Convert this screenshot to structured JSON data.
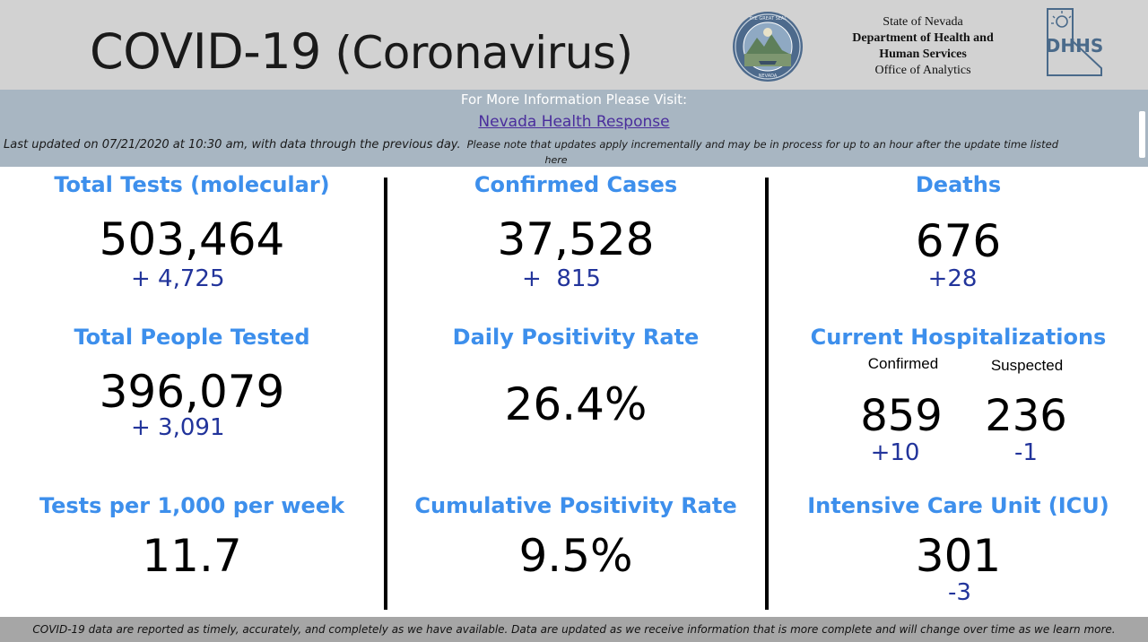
{
  "header": {
    "title_main": "COVID-19",
    "title_paren": "(Coronavirus)",
    "seal_icon": "nevada-state-seal-icon",
    "agency": {
      "line1": "State of Nevada",
      "line2": "Department of Health and",
      "line3": "Human Services",
      "line4": "Office of Analytics"
    },
    "dhhs_icon": "dhhs-logo-icon"
  },
  "info": {
    "heading": "For More Information Please Visit:",
    "link_text": "Nevada Health Response",
    "updated": "Last updated on 07/21/2020 at 10:30 am, with data through the previous day.",
    "note": "Please note that updates apply incrementally and may be in process for up to an hour after the update time listed",
    "note_cont": "here"
  },
  "metrics": {
    "total_tests": {
      "label": "Total Tests (molecular)",
      "value": "503,464",
      "delta": "+ 4,725"
    },
    "confirmed_cases": {
      "label": "Confirmed Cases",
      "value": "37,528",
      "delta": "+  815"
    },
    "deaths": {
      "label": "Deaths",
      "value": "676",
      "delta": "+28"
    },
    "people_tested": {
      "label": "Total People Tested",
      "value": "396,079",
      "delta": "+ 3,091"
    },
    "daily_positivity": {
      "label": "Daily Positivity Rate",
      "value": "26.4%"
    },
    "hospitalizations": {
      "label": "Current Hospitalizations",
      "confirmed_label": "Confirmed",
      "suspected_label": "Suspected",
      "confirmed_value": "859",
      "suspected_value": "236",
      "confirmed_delta": "+10",
      "suspected_delta": "-1"
    },
    "tests_per_1000": {
      "label": "Tests per 1,000 per week",
      "value": "11.7"
    },
    "cumulative_positivity": {
      "label": "Cumulative Positivity Rate",
      "value": "9.5%"
    },
    "icu": {
      "label": "Intensive Care Unit (ICU)",
      "value": "301",
      "delta": "-3"
    }
  },
  "colors": {
    "label_blue": "#3d8fec",
    "delta_navy": "#22349b",
    "header_gray": "#d2d2d2",
    "info_bar": "#a8b6c2",
    "link_purple": "#4a2d9c"
  },
  "footer": {
    "text": "COVID-19 data are reported as timely, accurately, and completely as we have available.  Data are updated as we receive information that is more complete and will change over time as we learn more."
  }
}
